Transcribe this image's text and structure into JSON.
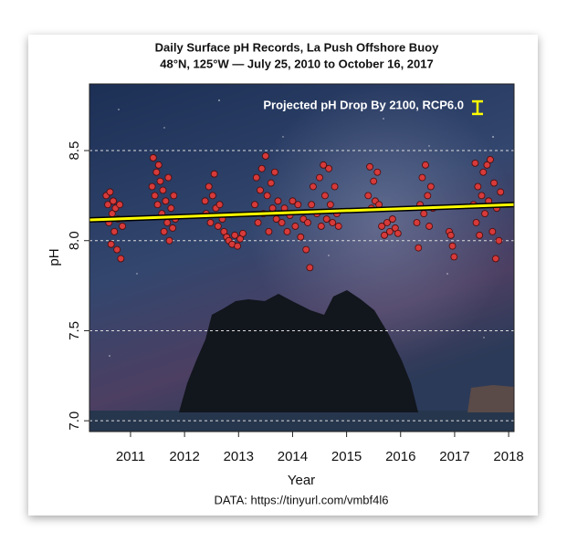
{
  "chart_data": {
    "type": "scatter",
    "title": "Daily Surface pH Records, La Push Offshore Buoy",
    "subtitle": "48°N, 125°W — July 25, 2010 to October 16, 2017",
    "xlabel": "Year",
    "ylabel": "pH",
    "source": "DATA: https://tinyurl.com/vmbf4l6",
    "color": "#d63a3a",
    "x": [
      2010.55,
      2010.58,
      2010.6,
      2010.62,
      2010.64,
      2010.66,
      2010.68,
      2010.7,
      2010.72,
      2010.75,
      2010.77,
      2010.8,
      2010.82,
      2010.85,
      2011.4,
      2011.42,
      2011.45,
      2011.48,
      2011.5,
      2011.52,
      2011.55,
      2011.58,
      2011.6,
      2011.62,
      2011.65,
      2011.68,
      2011.7,
      2011.72,
      2011.75,
      2011.78,
      2011.8,
      2011.83,
      2012.38,
      2012.4,
      2012.45,
      2012.48,
      2012.52,
      2012.55,
      2012.58,
      2012.62,
      2012.65,
      2012.7,
      2012.73,
      2012.78,
      2012.82,
      2012.88,
      2012.93,
      2012.98,
      2013.03,
      2013.08,
      2013.3,
      2013.33,
      2013.36,
      2013.4,
      2013.43,
      2013.46,
      2013.5,
      2013.53,
      2013.56,
      2013.6,
      2013.63,
      2013.67,
      2013.7,
      2013.73,
      2013.8,
      2013.85,
      2013.9,
      2013.95,
      2014.0,
      2014.05,
      2014.1,
      2014.15,
      2014.2,
      2014.25,
      2014.28,
      2014.32,
      2014.35,
      2014.38,
      2014.45,
      2014.5,
      2014.53,
      2014.57,
      2014.6,
      2014.63,
      2014.67,
      2014.7,
      2014.74,
      2014.78,
      2014.82,
      2014.85,
      2015.4,
      2015.43,
      2015.46,
      2015.5,
      2015.53,
      2015.57,
      2015.6,
      2015.65,
      2015.7,
      2015.75,
      2015.8,
      2015.85,
      2015.9,
      2015.95,
      2016.3,
      2016.33,
      2016.36,
      2016.4,
      2016.43,
      2016.46,
      2016.5,
      2016.53,
      2016.56,
      2016.6,
      2016.9,
      2016.93,
      2016.96,
      2016.99,
      2017.35,
      2017.38,
      2017.4,
      2017.43,
      2017.46,
      2017.5,
      2017.53,
      2017.56,
      2017.6,
      2017.63,
      2017.66,
      2017.7,
      2017.73,
      2017.76,
      2017.78,
      2017.82,
      2017.85
    ],
    "values": [
      8.25,
      8.2,
      8.1,
      8.27,
      7.98,
      8.15,
      8.22,
      8.05,
      8.18,
      7.95,
      8.12,
      8.2,
      7.9,
      8.08,
      8.3,
      8.46,
      8.25,
      8.38,
      8.2,
      8.42,
      8.33,
      8.15,
      8.28,
      8.05,
      8.22,
      8.1,
      8.35,
      8.0,
      8.18,
      8.07,
      8.25,
      8.12,
      8.22,
      8.15,
      8.3,
      8.1,
      8.25,
      8.37,
      8.18,
      8.08,
      8.2,
      8.12,
      8.05,
      8.02,
      8.0,
      7.98,
      8.03,
      7.97,
      8.01,
      8.04,
      8.2,
      8.35,
      8.1,
      8.28,
      8.4,
      8.15,
      8.47,
      8.25,
      8.05,
      8.32,
      8.18,
      8.38,
      8.12,
      8.22,
      8.1,
      8.18,
      8.05,
      8.14,
      8.22,
      8.08,
      8.2,
      8.02,
      8.12,
      7.95,
      8.1,
      7.85,
      8.2,
      8.3,
      8.15,
      8.35,
      8.08,
      8.42,
      8.25,
      8.12,
      8.4,
      8.2,
      8.1,
      8.3,
      8.15,
      8.08,
      8.25,
      8.41,
      8.18,
      8.33,
      8.22,
      8.38,
      8.2,
      8.08,
      8.03,
      8.1,
      8.05,
      8.12,
      8.07,
      8.04,
      8.1,
      7.96,
      8.2,
      8.35,
      8.15,
      8.42,
      8.25,
      8.08,
      8.3,
      8.18,
      8.05,
      8.03,
      7.97,
      7.91,
      8.2,
      8.43,
      8.1,
      8.3,
      8.03,
      8.25,
      8.38,
      8.15,
      8.42,
      8.22,
      8.45,
      8.05,
      8.32,
      7.9,
      8.18,
      8.0,
      8.27
    ],
    "trend": {
      "color": "#ffff00",
      "x": [
        2010.24,
        2018.1
      ],
      "values": [
        8.115,
        8.2
      ]
    },
    "annotation": {
      "text": "Projected pH Drop By 2100, RCP6.0",
      "ph_drop": 0.07,
      "color": "#ffff00"
    },
    "xlim": [
      2010.24,
      2018.1
    ],
    "ylim": [
      6.94,
      8.87
    ],
    "xticks": [
      2011,
      2012,
      2013,
      2014,
      2015,
      2016,
      2017,
      2018
    ],
    "yticks": [
      {
        "value": 7,
        "label": "7.0"
      },
      7.5,
      {
        "value": 8,
        "label": "8.0"
      },
      8.5
    ],
    "grid": true
  }
}
